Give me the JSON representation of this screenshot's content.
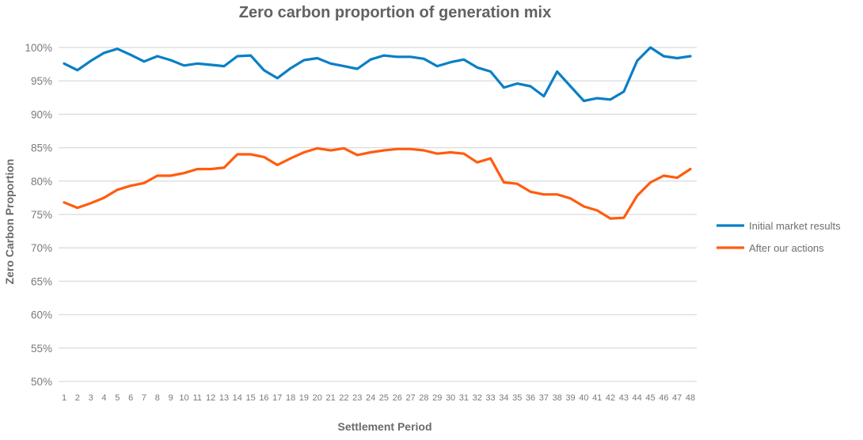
{
  "chart_data": {
    "type": "line",
    "title": "Zero carbon proportion of generation mix",
    "xlabel": "Settlement Period",
    "ylabel": "Zero Carbon Proportion",
    "ylim": [
      50,
      100
    ],
    "y_ticks": [
      "50%",
      "55%",
      "60%",
      "65%",
      "70%",
      "75%",
      "80%",
      "85%",
      "90%",
      "95%",
      "100%"
    ],
    "y_tick_values": [
      50,
      55,
      60,
      65,
      70,
      75,
      80,
      85,
      90,
      95,
      100
    ],
    "grid": true,
    "legend_position": "right",
    "x": [
      "1",
      "2",
      "3",
      "4",
      "5",
      "6",
      "7",
      "8",
      "9",
      "10",
      "11",
      "12",
      "13",
      "14",
      "15",
      "16",
      "17",
      "18",
      "19",
      "20",
      "21",
      "22",
      "23",
      "24",
      "25",
      "26",
      "27",
      "28",
      "29",
      "30",
      "31",
      "32",
      "33",
      "34",
      "35",
      "36",
      "37",
      "38",
      "39",
      "40",
      "41",
      "42",
      "43",
      "44",
      "45",
      "46",
      "47",
      "48"
    ],
    "series": [
      {
        "name": "Initial market results",
        "color": "#0a7fc6",
        "values": [
          97.6,
          96.6,
          98.0,
          99.2,
          99.8,
          98.9,
          97.9,
          98.7,
          98.1,
          97.3,
          97.6,
          97.4,
          97.2,
          98.7,
          98.8,
          96.6,
          95.4,
          96.9,
          98.1,
          98.4,
          97.6,
          97.2,
          96.8,
          98.2,
          98.8,
          98.6,
          98.6,
          98.3,
          97.2,
          97.8,
          98.2,
          97.0,
          96.4,
          94.0,
          94.6,
          94.2,
          92.7,
          96.4,
          94.2,
          92.0,
          92.4,
          92.2,
          93.4,
          98.0,
          100.0,
          98.7,
          98.4,
          98.7
        ]
      },
      {
        "name": "After our actions",
        "color": "#ff5c0f",
        "values": [
          76.8,
          76.0,
          76.7,
          77.5,
          78.7,
          79.3,
          79.7,
          80.8,
          80.8,
          81.2,
          81.8,
          81.8,
          82.0,
          84.0,
          84.0,
          83.6,
          82.4,
          83.4,
          84.3,
          84.9,
          84.6,
          84.9,
          83.9,
          84.3,
          84.6,
          84.8,
          84.8,
          84.6,
          84.1,
          84.3,
          84.1,
          82.8,
          83.4,
          79.8,
          79.6,
          78.4,
          78.0,
          78.0,
          77.4,
          76.2,
          75.6,
          74.4,
          74.5,
          77.8,
          79.8,
          80.8,
          80.5,
          81.8
        ]
      }
    ]
  }
}
